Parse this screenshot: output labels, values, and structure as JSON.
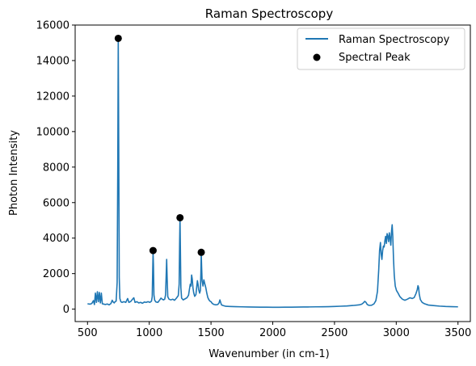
{
  "chart_data": {
    "type": "line",
    "title": "Raman Spectroscopy",
    "xlabel": "Wavenumber (in cm-1)",
    "ylabel": "Photon Intensity",
    "xlim": [
      400,
      3600
    ],
    "ylim": [
      -700,
      16000
    ],
    "x_ticks": [
      500,
      1000,
      1500,
      2000,
      2500,
      3000,
      3500
    ],
    "y_ticks": [
      0,
      2000,
      4000,
      6000,
      8000,
      10000,
      12000,
      14000,
      16000
    ],
    "grid": false,
    "legend_position": "top-right",
    "colors": {
      "line": "#1f77b4",
      "peaks": "#000000"
    },
    "series": [
      {
        "name": "Raman Spectroscopy",
        "kind": "line",
        "points": [
          [
            500,
            300
          ],
          [
            520,
            280
          ],
          [
            535,
            320
          ],
          [
            548,
            480
          ],
          [
            556,
            260
          ],
          [
            564,
            900
          ],
          [
            572,
            380
          ],
          [
            580,
            980
          ],
          [
            588,
            420
          ],
          [
            596,
            940
          ],
          [
            604,
            350
          ],
          [
            612,
            900
          ],
          [
            620,
            300
          ],
          [
            632,
            280
          ],
          [
            645,
            260
          ],
          [
            660,
            290
          ],
          [
            675,
            240
          ],
          [
            690,
            320
          ],
          [
            700,
            500
          ],
          [
            708,
            400
          ],
          [
            716,
            350
          ],
          [
            724,
            420
          ],
          [
            732,
            450
          ],
          [
            740,
            1500
          ],
          [
            745,
            8000
          ],
          [
            749,
            15200
          ],
          [
            753,
            9000
          ],
          [
            757,
            1800
          ],
          [
            762,
            600
          ],
          [
            770,
            420
          ],
          [
            780,
            380
          ],
          [
            795,
            420
          ],
          [
            810,
            380
          ],
          [
            825,
            600
          ],
          [
            835,
            380
          ],
          [
            850,
            430
          ],
          [
            865,
            560
          ],
          [
            875,
            640
          ],
          [
            885,
            380
          ],
          [
            900,
            420
          ],
          [
            915,
            350
          ],
          [
            930,
            380
          ],
          [
            945,
            330
          ],
          [
            960,
            400
          ],
          [
            975,
            380
          ],
          [
            990,
            420
          ],
          [
            1005,
            380
          ],
          [
            1018,
            450
          ],
          [
            1024,
            700
          ],
          [
            1028,
            2200
          ],
          [
            1031,
            3200
          ],
          [
            1034,
            2500
          ],
          [
            1038,
            800
          ],
          [
            1044,
            500
          ],
          [
            1055,
            400
          ],
          [
            1070,
            380
          ],
          [
            1085,
            520
          ],
          [
            1095,
            620
          ],
          [
            1105,
            560
          ],
          [
            1115,
            520
          ],
          [
            1125,
            560
          ],
          [
            1132,
            800
          ],
          [
            1137,
            1900
          ],
          [
            1141,
            2800
          ],
          [
            1145,
            1700
          ],
          [
            1150,
            700
          ],
          [
            1160,
            560
          ],
          [
            1175,
            520
          ],
          [
            1190,
            560
          ],
          [
            1205,
            500
          ],
          [
            1220,
            620
          ],
          [
            1235,
            760
          ],
          [
            1242,
            1400
          ],
          [
            1246,
            3800
          ],
          [
            1249,
            5100
          ],
          [
            1252,
            3500
          ],
          [
            1256,
            1200
          ],
          [
            1262,
            620
          ],
          [
            1275,
            520
          ],
          [
            1290,
            580
          ],
          [
            1305,
            640
          ],
          [
            1318,
            780
          ],
          [
            1325,
            1100
          ],
          [
            1332,
            1400
          ],
          [
            1338,
            1300
          ],
          [
            1343,
            1920
          ],
          [
            1348,
            1700
          ],
          [
            1354,
            1200
          ],
          [
            1360,
            920
          ],
          [
            1368,
            720
          ],
          [
            1378,
            820
          ],
          [
            1385,
            1300
          ],
          [
            1390,
            1600
          ],
          [
            1395,
            1400
          ],
          [
            1400,
            1100
          ],
          [
            1408,
            900
          ],
          [
            1414,
            1050
          ],
          [
            1418,
            2000
          ],
          [
            1421,
            3150
          ],
          [
            1424,
            2400
          ],
          [
            1428,
            1600
          ],
          [
            1435,
            1300
          ],
          [
            1442,
            1650
          ],
          [
            1450,
            1420
          ],
          [
            1458,
            1200
          ],
          [
            1466,
            900
          ],
          [
            1474,
            660
          ],
          [
            1482,
            540
          ],
          [
            1490,
            460
          ],
          [
            1500,
            420
          ],
          [
            1510,
            320
          ],
          [
            1525,
            260
          ],
          [
            1540,
            240
          ],
          [
            1555,
            260
          ],
          [
            1565,
            350
          ],
          [
            1572,
            520
          ],
          [
            1578,
            380
          ],
          [
            1585,
            240
          ],
          [
            1600,
            200
          ],
          [
            1620,
            160
          ],
          [
            1650,
            150
          ],
          [
            1700,
            140
          ],
          [
            1750,
            130
          ],
          [
            1800,
            120
          ],
          [
            1850,
            115
          ],
          [
            1900,
            110
          ],
          [
            1950,
            110
          ],
          [
            2000,
            105
          ],
          [
            2050,
            105
          ],
          [
            2100,
            110
          ],
          [
            2150,
            110
          ],
          [
            2200,
            115
          ],
          [
            2250,
            120
          ],
          [
            2300,
            125
          ],
          [
            2350,
            130
          ],
          [
            2400,
            135
          ],
          [
            2450,
            140
          ],
          [
            2500,
            150
          ],
          [
            2550,
            165
          ],
          [
            2600,
            180
          ],
          [
            2650,
            205
          ],
          [
            2700,
            240
          ],
          [
            2720,
            280
          ],
          [
            2735,
            360
          ],
          [
            2745,
            440
          ],
          [
            2755,
            380
          ],
          [
            2765,
            260
          ],
          [
            2780,
            210
          ],
          [
            2800,
            220
          ],
          [
            2820,
            300
          ],
          [
            2835,
            480
          ],
          [
            2848,
            1000
          ],
          [
            2858,
            2200
          ],
          [
            2865,
            3300
          ],
          [
            2872,
            3750
          ],
          [
            2878,
            3100
          ],
          [
            2884,
            2800
          ],
          [
            2890,
            3300
          ],
          [
            2896,
            3550
          ],
          [
            2902,
            3500
          ],
          [
            2908,
            3850
          ],
          [
            2914,
            4100
          ],
          [
            2920,
            3700
          ],
          [
            2926,
            4250
          ],
          [
            2932,
            4100
          ],
          [
            2938,
            3800
          ],
          [
            2944,
            4300
          ],
          [
            2950,
            4000
          ],
          [
            2956,
            3600
          ],
          [
            2962,
            4400
          ],
          [
            2967,
            4750
          ],
          [
            2972,
            4100
          ],
          [
            2978,
            2800
          ],
          [
            2984,
            1900
          ],
          [
            2992,
            1300
          ],
          [
            3002,
            1050
          ],
          [
            3015,
            900
          ],
          [
            3030,
            700
          ],
          [
            3050,
            560
          ],
          [
            3070,
            500
          ],
          [
            3090,
            560
          ],
          [
            3110,
            640
          ],
          [
            3130,
            600
          ],
          [
            3145,
            650
          ],
          [
            3160,
            880
          ],
          [
            3170,
            1100
          ],
          [
            3176,
            1320
          ],
          [
            3181,
            1220
          ],
          [
            3186,
            860
          ],
          [
            3195,
            540
          ],
          [
            3210,
            380
          ],
          [
            3230,
            300
          ],
          [
            3260,
            230
          ],
          [
            3300,
            200
          ],
          [
            3350,
            170
          ],
          [
            3400,
            150
          ],
          [
            3450,
            140
          ],
          [
            3500,
            130
          ]
        ]
      },
      {
        "name": "Spectral Peak",
        "kind": "scatter",
        "points": [
          [
            749,
            15250
          ],
          [
            1031,
            3300
          ],
          [
            1249,
            5150
          ],
          [
            1421,
            3200
          ]
        ]
      }
    ]
  }
}
